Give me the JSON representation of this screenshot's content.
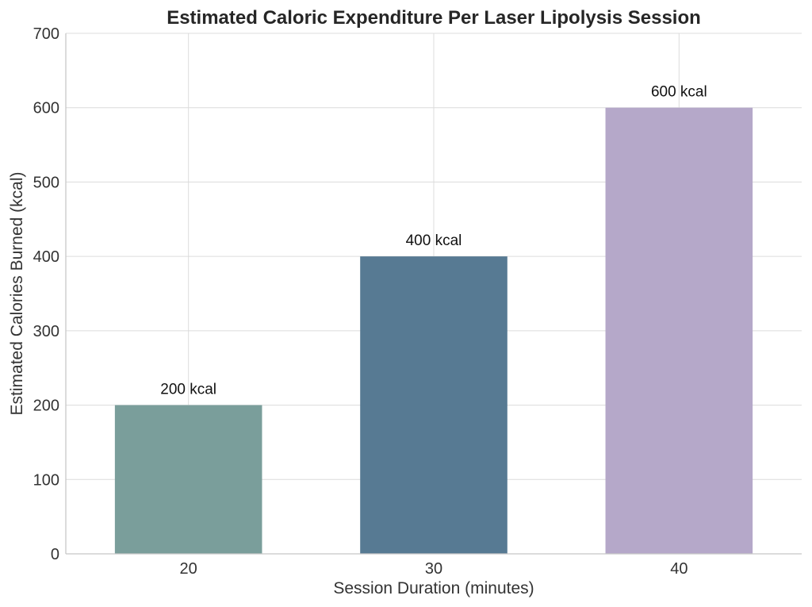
{
  "chart_data": {
    "type": "bar",
    "title": "Estimated Caloric Expenditure Per Laser Lipolysis Session",
    "xlabel": "Session Duration (minutes)",
    "ylabel": "Estimated Calories Burned (kcal)",
    "categories": [
      "20",
      "30",
      "40"
    ],
    "values": [
      200,
      400,
      600
    ],
    "data_labels": [
      "200 kcal",
      "400 kcal",
      "600 kcal"
    ],
    "colors": [
      "#7a9e9b",
      "#577a93",
      "#b5a8c9"
    ],
    "ylim": [
      0,
      700
    ],
    "yticks": [
      0,
      100,
      200,
      300,
      400,
      500,
      600,
      700
    ],
    "grid": true,
    "legend": "none"
  }
}
